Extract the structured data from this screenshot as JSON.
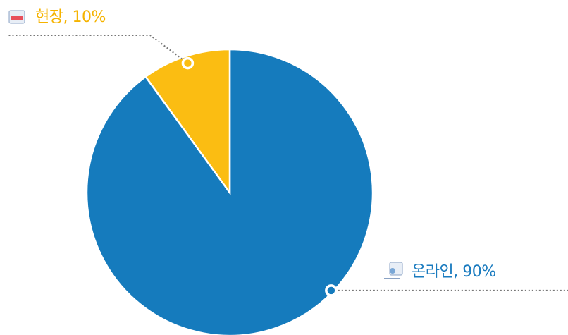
{
  "chart_data": {
    "type": "pie",
    "values": [
      90,
      10
    ],
    "value_labels": [
      "온라인, 90%",
      "현장, 10%"
    ],
    "colors": [
      "#157bbd",
      "#fbbd12"
    ],
    "label_colors": [
      "#1a7bbf",
      "#f5b300"
    ]
  }
}
